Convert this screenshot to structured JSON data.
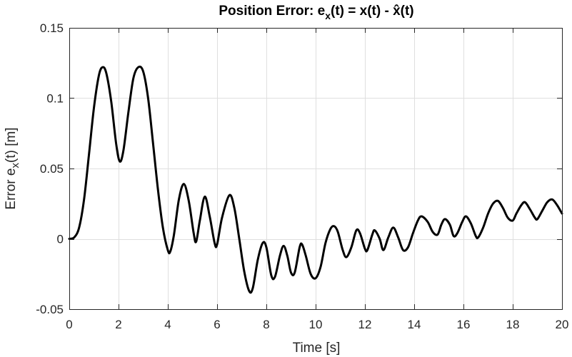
{
  "chart_data": {
    "type": "line",
    "title": {
      "prefix": "Position Error: e",
      "sub1": "x",
      "middle": "(t) = x(t) - ",
      "hat_base": "x",
      "hat_mark": "̂",
      "suffix": "(t)"
    },
    "xlabel": "Time [s]",
    "ylabel": {
      "prefix": "Error e",
      "sub": "x",
      "suffix": "(t) [m]"
    },
    "xlim": [
      0,
      20
    ],
    "ylim": [
      -0.05,
      0.15
    ],
    "xticks": [
      0,
      2,
      4,
      6,
      8,
      10,
      12,
      14,
      16,
      18,
      20
    ],
    "xtick_labels": [
      "0",
      "2",
      "4",
      "6",
      "8",
      "10",
      "12",
      "14",
      "16",
      "18",
      "20"
    ],
    "yticks": [
      -0.05,
      0,
      0.05,
      0.1,
      0.15
    ],
    "ytick_labels": [
      "-0.05",
      "0",
      "0.05",
      "0.1",
      "0.15"
    ],
    "grid": true,
    "series": [
      {
        "name": "e_x(t)",
        "color": "#000000",
        "points": [
          [
            0,
            0
          ],
          [
            0.2,
            0.001
          ],
          [
            0.4,
            0.008
          ],
          [
            0.6,
            0.028
          ],
          [
            0.8,
            0.06
          ],
          [
            1.0,
            0.093
          ],
          [
            1.2,
            0.116
          ],
          [
            1.35,
            0.122
          ],
          [
            1.5,
            0.118
          ],
          [
            1.7,
            0.098
          ],
          [
            1.9,
            0.068
          ],
          [
            2.05,
            0.055
          ],
          [
            2.2,
            0.063
          ],
          [
            2.4,
            0.09
          ],
          [
            2.6,
            0.114
          ],
          [
            2.8,
            0.122
          ],
          [
            3.0,
            0.119
          ],
          [
            3.2,
            0.1
          ],
          [
            3.4,
            0.068
          ],
          [
            3.6,
            0.035
          ],
          [
            3.8,
            0.008
          ],
          [
            4.0,
            -0.008
          ],
          [
            4.1,
            -0.009
          ],
          [
            4.25,
            0.003
          ],
          [
            4.45,
            0.028
          ],
          [
            4.65,
            0.039
          ],
          [
            4.85,
            0.027
          ],
          [
            5.05,
            0.004
          ],
          [
            5.15,
            -0.002
          ],
          [
            5.3,
            0.013
          ],
          [
            5.5,
            0.03
          ],
          [
            5.7,
            0.016
          ],
          [
            5.9,
            -0.003
          ],
          [
            6.0,
            -0.004
          ],
          [
            6.2,
            0.015
          ],
          [
            6.5,
            0.031
          ],
          [
            6.7,
            0.022
          ],
          [
            6.9,
            0.0
          ],
          [
            7.1,
            -0.023
          ],
          [
            7.3,
            -0.037
          ],
          [
            7.45,
            -0.035
          ],
          [
            7.65,
            -0.015
          ],
          [
            7.85,
            -0.003
          ],
          [
            8.0,
            -0.006
          ],
          [
            8.2,
            -0.026
          ],
          [
            8.35,
            -0.027
          ],
          [
            8.55,
            -0.012
          ],
          [
            8.7,
            -0.005
          ],
          [
            8.85,
            -0.012
          ],
          [
            9.0,
            -0.024
          ],
          [
            9.15,
            -0.024
          ],
          [
            9.35,
            -0.006
          ],
          [
            9.45,
            -0.004
          ],
          [
            9.6,
            -0.012
          ],
          [
            9.8,
            -0.025
          ],
          [
            10.0,
            -0.028
          ],
          [
            10.2,
            -0.02
          ],
          [
            10.4,
            -0.003
          ],
          [
            10.6,
            0.007
          ],
          [
            10.75,
            0.009
          ],
          [
            10.9,
            0.005
          ],
          [
            11.1,
            -0.008
          ],
          [
            11.25,
            -0.013
          ],
          [
            11.45,
            -0.006
          ],
          [
            11.65,
            0.006
          ],
          [
            11.8,
            0.004
          ],
          [
            12.0,
            -0.007
          ],
          [
            12.1,
            -0.008
          ],
          [
            12.3,
            0.003
          ],
          [
            12.4,
            0.006
          ],
          [
            12.6,
            0.0
          ],
          [
            12.75,
            -0.008
          ],
          [
            12.95,
            0.001
          ],
          [
            13.15,
            0.008
          ],
          [
            13.35,
            0.001
          ],
          [
            13.55,
            -0.008
          ],
          [
            13.75,
            -0.006
          ],
          [
            13.95,
            0.004
          ],
          [
            14.15,
            0.013
          ],
          [
            14.3,
            0.016
          ],
          [
            14.55,
            0.012
          ],
          [
            14.75,
            0.005
          ],
          [
            14.95,
            0.003
          ],
          [
            15.1,
            0.01
          ],
          [
            15.25,
            0.014
          ],
          [
            15.45,
            0.01
          ],
          [
            15.6,
            0.002
          ],
          [
            15.75,
            0.004
          ],
          [
            15.95,
            0.012
          ],
          [
            16.1,
            0.016
          ],
          [
            16.3,
            0.011
          ],
          [
            16.5,
            0.002
          ],
          [
            16.6,
            0.001
          ],
          [
            16.8,
            0.008
          ],
          [
            17.0,
            0.018
          ],
          [
            17.2,
            0.025
          ],
          [
            17.4,
            0.027
          ],
          [
            17.6,
            0.022
          ],
          [
            17.8,
            0.015
          ],
          [
            18.0,
            0.013
          ],
          [
            18.15,
            0.018
          ],
          [
            18.35,
            0.024
          ],
          [
            18.5,
            0.026
          ],
          [
            18.7,
            0.021
          ],
          [
            18.9,
            0.015
          ],
          [
            19.0,
            0.014
          ],
          [
            19.2,
            0.02
          ],
          [
            19.4,
            0.026
          ],
          [
            19.6,
            0.028
          ],
          [
            19.8,
            0.024
          ],
          [
            20.0,
            0.018
          ]
        ]
      }
    ]
  }
}
